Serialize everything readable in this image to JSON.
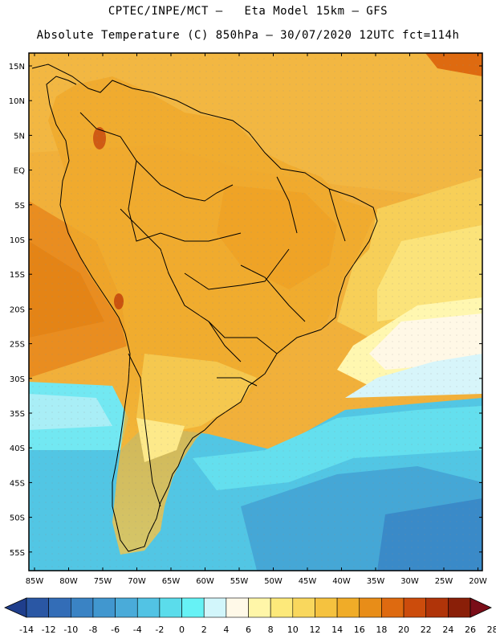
{
  "header": {
    "line1": "CPTEC/INPE/MCT –   Eta Model 15km – GFS",
    "line2": "Absolute Temperature (C) 850hPa – 30/07/2020 12UTC fct=114h"
  },
  "map": {
    "lat_labels": [
      "15N",
      "10N",
      "5N",
      "EQ",
      "5S",
      "10S",
      "15S",
      "20S",
      "25S",
      "30S",
      "35S",
      "40S",
      "45S",
      "50S",
      "55S"
    ],
    "lon_labels": [
      "85W",
      "80W",
      "75W",
      "70W",
      "65W",
      "60W",
      "55W",
      "50W",
      "45W",
      "40W",
      "35W",
      "30W",
      "25W",
      "20W"
    ]
  },
  "legend": {
    "labels": [
      "-14",
      "-12",
      "-10",
      "-8",
      "-6",
      "-4",
      "-2",
      "0",
      "2",
      "4",
      "6",
      "8",
      "10",
      "12",
      "14",
      "16",
      "18",
      "20",
      "22",
      "24",
      "26",
      "28"
    ],
    "colors": [
      "#1f3e8c",
      "#2a57a4",
      "#336db7",
      "#3a83c4",
      "#4197cf",
      "#4aabd9",
      "#52c3e4",
      "#5bdceb",
      "#66f2f5",
      "#d2f6fb",
      "#fff9e8",
      "#fff6a8",
      "#fde97a",
      "#f9d75d",
      "#f5c23f",
      "#f0ac28",
      "#e88d18",
      "#de6a10",
      "#cc4c0c",
      "#b03409",
      "#8a1f08",
      "#7a0d18"
    ]
  }
}
